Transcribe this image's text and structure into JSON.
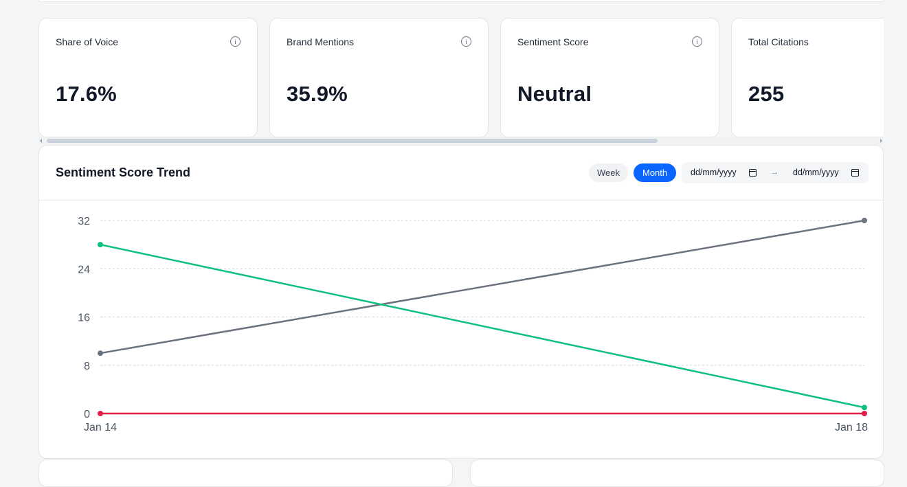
{
  "kpi_cards": [
    {
      "label": "Share of Voice",
      "value": "17.6%",
      "icon": "info-icon"
    },
    {
      "label": "Brand Mentions",
      "value": "35.9%",
      "icon": "info-icon"
    },
    {
      "label": "Sentiment Score",
      "value": "Neutral",
      "icon": "info-icon"
    },
    {
      "label": "Total Citations",
      "value": "255"
    }
  ],
  "trend": {
    "title": "Sentiment Score Trend",
    "week_label": "Week",
    "month_label": "Month",
    "active_period": "Month",
    "date_from_placeholder": "dd/mm/yyyy",
    "date_to_placeholder": "dd/mm/yyyy",
    "range_separator": "→"
  },
  "chart_data": {
    "type": "line",
    "x": [
      "Jan 14",
      "Jan 18"
    ],
    "y_ticks": [
      0,
      8,
      16,
      24,
      32
    ],
    "ylim": [
      0,
      32
    ],
    "grid": true,
    "series": [
      {
        "values": [
          10,
          32
        ],
        "color": "#6b7280"
      },
      {
        "values": [
          28,
          1
        ],
        "color": "#10c07f"
      },
      {
        "values": [
          0,
          0
        ],
        "color": "#e11d48"
      }
    ]
  }
}
